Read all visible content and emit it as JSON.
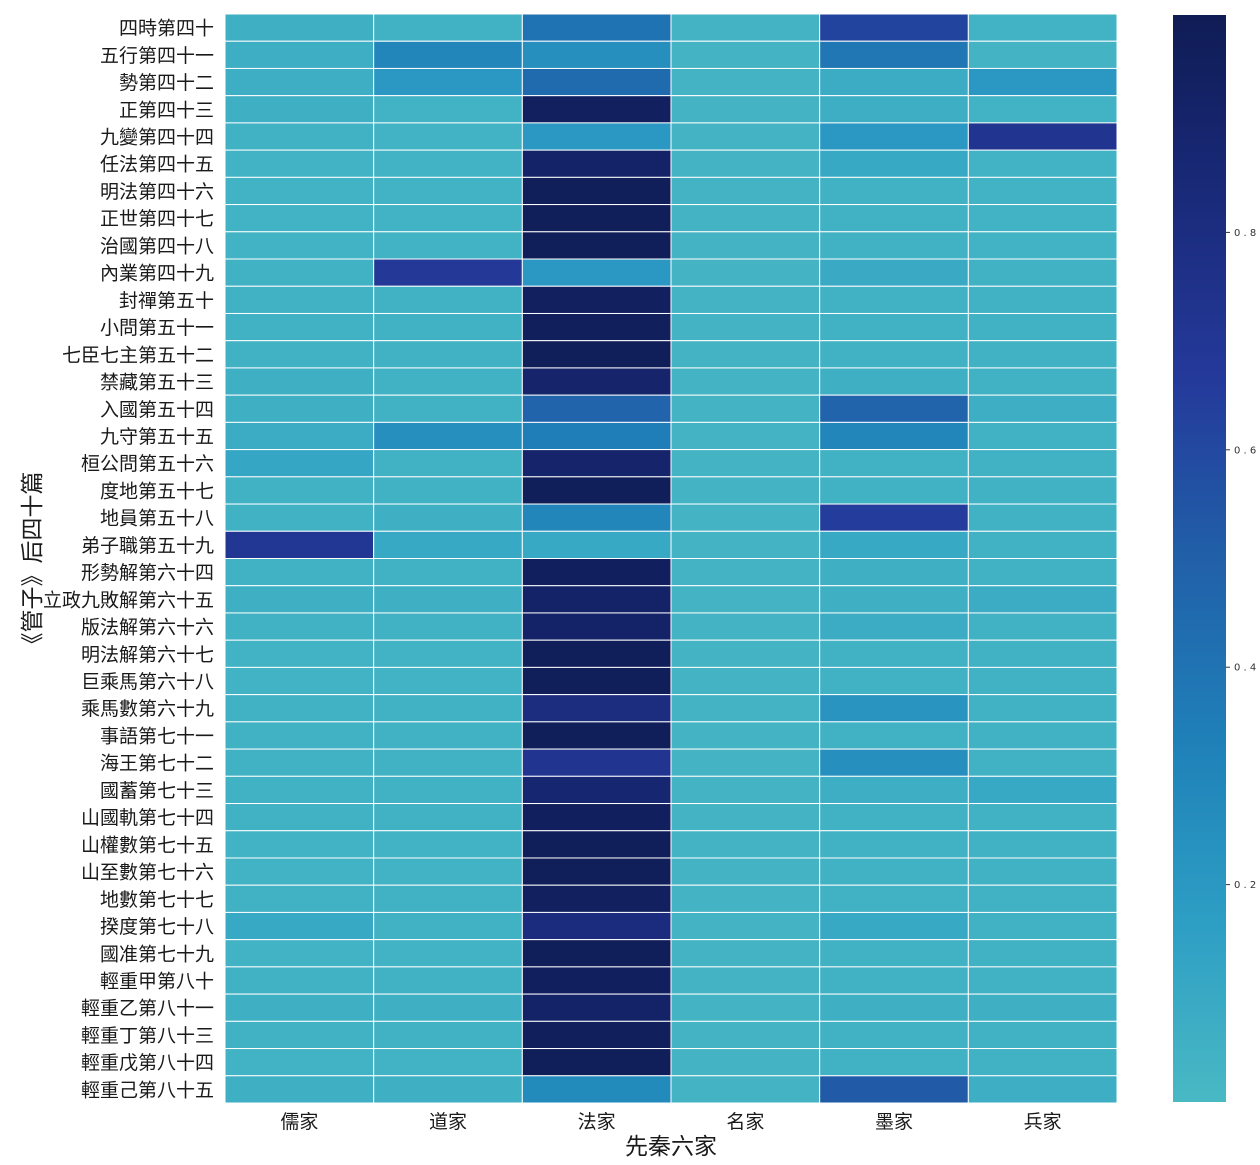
{
  "chart_data": {
    "type": "heatmap",
    "title": "",
    "xlabel": "先秦六家",
    "ylabel": "《管子》后四十篇",
    "columns": [
      "儒家",
      "道家",
      "法家",
      "名家",
      "墨家",
      "兵家"
    ],
    "rows": [
      "四時第四十",
      "五行第四十一",
      "勢第四十二",
      "正第四十三",
      "九變第四十四",
      "任法第四十五",
      "明法第四十六",
      "正世第四十七",
      "治國第四十八",
      "內業第四十九",
      "封禪第五十",
      "小問第五十一",
      "七臣七主第五十二",
      "禁藏第五十三",
      "入國第五十四",
      "九守第五十五",
      "桓公問第五十六",
      "度地第五十七",
      "地員第五十八",
      "弟子職第五十九",
      "形勢解第六十四",
      "立政九敗解第六十五",
      "版法解第六十六",
      "明法解第六十七",
      "巨乘馬第六十八",
      "乘馬數第六十九",
      "事語第七十一",
      "海王第七十二",
      "國蓄第七十三",
      "山國軌第七十四",
      "山權數第七十五",
      "山至數第七十六",
      "地數第七十七",
      "揆度第七十八",
      "國准第七十九",
      "輕重甲第八十",
      "輕重乙第八十一",
      "輕重丁第八十三",
      "輕重戊第八十四",
      "輕重己第八十五"
    ],
    "values": [
      [
        0.06,
        0.05,
        0.4,
        0.03,
        0.62,
        0.04
      ],
      [
        0.07,
        0.3,
        0.25,
        0.03,
        0.38,
        0.03
      ],
      [
        0.07,
        0.2,
        0.45,
        0.03,
        0.08,
        0.2
      ],
      [
        0.06,
        0.04,
        0.95,
        0.03,
        0.07,
        0.04
      ],
      [
        0.05,
        0.04,
        0.2,
        0.03,
        0.2,
        0.72
      ],
      [
        0.04,
        0.04,
        0.92,
        0.03,
        0.1,
        0.04
      ],
      [
        0.04,
        0.04,
        0.98,
        0.03,
        0.05,
        0.04
      ],
      [
        0.04,
        0.04,
        0.98,
        0.03,
        0.05,
        0.04
      ],
      [
        0.04,
        0.04,
        0.98,
        0.03,
        0.05,
        0.04
      ],
      [
        0.05,
        0.68,
        0.2,
        0.03,
        0.09,
        0.05
      ],
      [
        0.05,
        0.05,
        0.95,
        0.03,
        0.05,
        0.05
      ],
      [
        0.05,
        0.05,
        0.97,
        0.03,
        0.05,
        0.05
      ],
      [
        0.05,
        0.05,
        0.98,
        0.03,
        0.05,
        0.05
      ],
      [
        0.06,
        0.05,
        0.9,
        0.03,
        0.06,
        0.05
      ],
      [
        0.06,
        0.05,
        0.48,
        0.03,
        0.48,
        0.07
      ],
      [
        0.08,
        0.25,
        0.35,
        0.03,
        0.3,
        0.05
      ],
      [
        0.12,
        0.05,
        0.9,
        0.03,
        0.05,
        0.05
      ],
      [
        0.05,
        0.05,
        0.98,
        0.03,
        0.05,
        0.05
      ],
      [
        0.05,
        0.06,
        0.3,
        0.03,
        0.65,
        0.05
      ],
      [
        0.7,
        0.1,
        0.1,
        0.03,
        0.1,
        0.05
      ],
      [
        0.05,
        0.05,
        0.96,
        0.03,
        0.06,
        0.05
      ],
      [
        0.06,
        0.06,
        0.92,
        0.03,
        0.06,
        0.08
      ],
      [
        0.05,
        0.05,
        0.92,
        0.03,
        0.08,
        0.05
      ],
      [
        0.04,
        0.04,
        0.98,
        0.03,
        0.05,
        0.05
      ],
      [
        0.04,
        0.04,
        0.98,
        0.03,
        0.05,
        0.05
      ],
      [
        0.05,
        0.05,
        0.8,
        0.03,
        0.22,
        0.05
      ],
      [
        0.05,
        0.05,
        0.98,
        0.03,
        0.05,
        0.05
      ],
      [
        0.05,
        0.05,
        0.72,
        0.03,
        0.25,
        0.05
      ],
      [
        0.05,
        0.05,
        0.88,
        0.03,
        0.07,
        0.1
      ],
      [
        0.05,
        0.05,
        0.96,
        0.03,
        0.05,
        0.05
      ],
      [
        0.04,
        0.04,
        0.98,
        0.03,
        0.05,
        0.05
      ],
      [
        0.04,
        0.04,
        0.98,
        0.03,
        0.05,
        0.05
      ],
      [
        0.05,
        0.05,
        0.95,
        0.03,
        0.05,
        0.05
      ],
      [
        0.1,
        0.05,
        0.82,
        0.03,
        0.1,
        0.05
      ],
      [
        0.04,
        0.04,
        0.98,
        0.03,
        0.05,
        0.05
      ],
      [
        0.05,
        0.05,
        0.96,
        0.03,
        0.05,
        0.05
      ],
      [
        0.06,
        0.06,
        0.92,
        0.03,
        0.06,
        0.06
      ],
      [
        0.05,
        0.05,
        0.97,
        0.03,
        0.05,
        0.05
      ],
      [
        0.04,
        0.04,
        0.98,
        0.03,
        0.05,
        0.05
      ],
      [
        0.06,
        0.06,
        0.28,
        0.03,
        0.52,
        0.07
      ]
    ],
    "vmin": 0.0,
    "vmax": 1.0,
    "colorbar_ticks": [
      0.2,
      0.4,
      0.6,
      0.8
    ],
    "colormap": "YlGnBu (upper range)",
    "colormap_stops": [
      "#49b9c4",
      "#2d9ec4",
      "#1f80b8",
      "#2160a9",
      "#24399a",
      "#1a2a7a",
      "#0f1c55"
    ]
  }
}
